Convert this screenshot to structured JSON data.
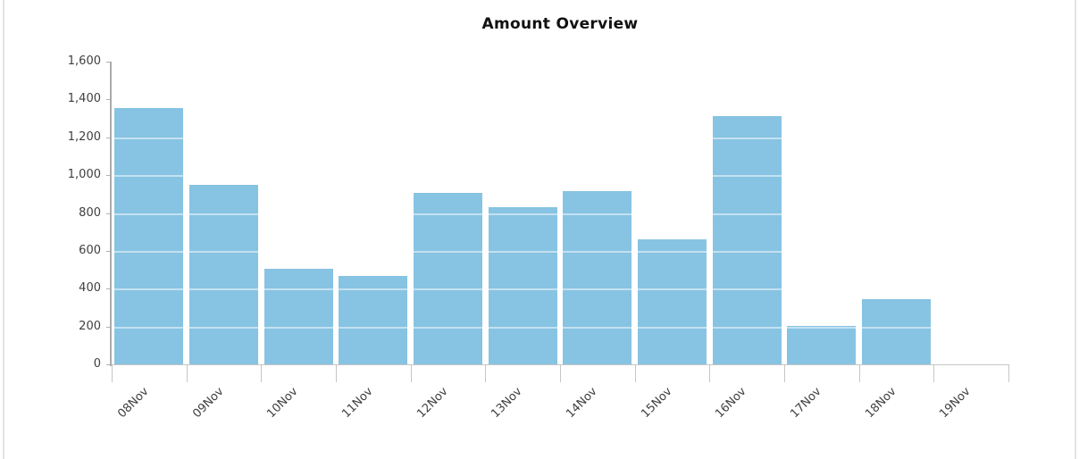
{
  "page": {
    "background": "#ffffff",
    "edge_border_color": "#e3e3e3"
  },
  "chart_data": {
    "type": "bar",
    "title": "Amount Overview",
    "xlabel": "",
    "ylabel": "",
    "legend": "none",
    "grid": "white horizontal gridlines drawn over bars at 200-unit steps",
    "categories": [
      "08Nov",
      "09Nov",
      "10Nov",
      "11Nov",
      "12Nov",
      "13Nov",
      "14Nov",
      "15Nov",
      "16Nov",
      "17Nov",
      "18Nov",
      "19Nov"
    ],
    "values": [
      1355,
      950,
      505,
      465,
      905,
      830,
      915,
      660,
      1310,
      205,
      345,
      0
    ],
    "ylim": [
      0,
      1600
    ],
    "ytick_step": 200,
    "ytick_values": [
      0,
      200,
      400,
      600,
      800,
      1000,
      1200,
      1400,
      1600
    ],
    "ytick_labels": [
      "0",
      "200",
      "400",
      "600",
      "800",
      "1,000",
      "1,200",
      "1,400",
      "1,600"
    ],
    "colors": {
      "bar": "#87C3E2",
      "y_axis_line": "#ABABAB",
      "x_axis_line": "#C6C6C6",
      "tick": "#B0B0B0",
      "label": "#3F3F3F",
      "title": "#111111",
      "gridline": "rgba(255,255,255,0.5)"
    }
  }
}
